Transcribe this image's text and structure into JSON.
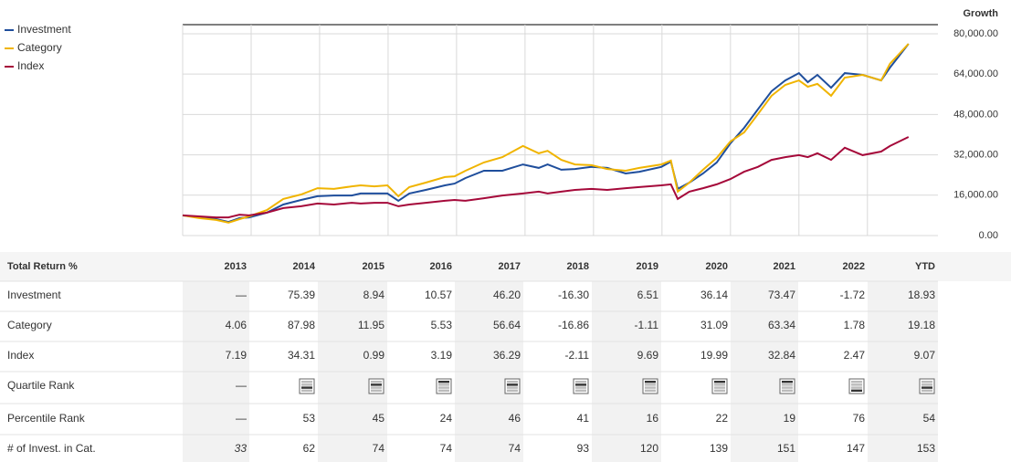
{
  "chart_data": {
    "type": "line",
    "y_axis_title": "Growth",
    "x": [
      2013.0,
      2013.24,
      2013.49,
      2013.67,
      2013.83,
      2013.97,
      2014.23,
      2014.47,
      2014.73,
      2014.97,
      2015.21,
      2015.47,
      2015.6,
      2015.8,
      2015.99,
      2016.15,
      2016.31,
      2016.55,
      2016.83,
      2016.97,
      2017.13,
      2017.4,
      2017.67,
      2017.97,
      2018.2,
      2018.33,
      2018.53,
      2018.73,
      2018.97,
      2019.2,
      2019.47,
      2019.67,
      2019.99,
      2020.13,
      2020.23,
      2020.4,
      2020.6,
      2020.8,
      2021.0,
      2021.2,
      2021.4,
      2021.6,
      2021.8,
      2022.0,
      2022.13,
      2022.27,
      2022.47,
      2022.67,
      2022.93,
      2023.2,
      2023.33,
      2023.6
    ],
    "series": [
      {
        "name": "Investment",
        "color": "#1f4e9c",
        "values": [
          8000,
          7200,
          6500,
          5400,
          6900,
          7200,
          9100,
          12300,
          14100,
          15600,
          15900,
          15900,
          16700,
          16700,
          16700,
          13800,
          16700,
          18100,
          19900,
          20600,
          22800,
          25700,
          25700,
          28200,
          26800,
          28200,
          26100,
          26400,
          27200,
          26800,
          24600,
          25300,
          27200,
          29300,
          18500,
          21000,
          24600,
          29000,
          36600,
          42700,
          50000,
          57200,
          61500,
          64400,
          60800,
          63700,
          58600,
          64400,
          63700,
          61500,
          66600,
          76000
        ]
      },
      {
        "name": "Category",
        "color": "#f0b400",
        "values": [
          8000,
          6900,
          6200,
          5100,
          6500,
          7600,
          10100,
          14500,
          16300,
          18800,
          18500,
          19500,
          19900,
          19500,
          19900,
          15600,
          19200,
          21000,
          23200,
          23500,
          25700,
          29000,
          31100,
          35500,
          32600,
          33600,
          30000,
          28200,
          27900,
          26400,
          25700,
          26800,
          28200,
          29700,
          17400,
          21000,
          26100,
          30800,
          37300,
          40900,
          48100,
          55400,
          59700,
          61500,
          59000,
          60100,
          55400,
          62600,
          63700,
          61500,
          68100,
          76000
        ]
      },
      {
        "name": "Index",
        "color": "#a5093a",
        "values": [
          8000,
          7600,
          7200,
          7200,
          8300,
          8000,
          9100,
          10900,
          11600,
          12700,
          12300,
          13000,
          12700,
          13000,
          13000,
          11600,
          12300,
          13000,
          13800,
          14100,
          13800,
          14800,
          15900,
          16700,
          17400,
          16700,
          17400,
          18100,
          18500,
          18100,
          18800,
          19200,
          19900,
          20300,
          14500,
          17400,
          18800,
          20300,
          22400,
          25300,
          27200,
          30000,
          31100,
          31900,
          31100,
          32600,
          30000,
          34800,
          31900,
          33300,
          35500,
          39100
        ]
      }
    ],
    "xlim": [
      2013,
      2024.03
    ],
    "xticks": [
      2014,
      2015,
      2016,
      2017,
      2018,
      2019,
      2020,
      2021,
      2022,
      2023
    ],
    "ylim": [
      0,
      83600
    ],
    "yticks": [
      {
        "value": 0,
        "label": "0.00"
      },
      {
        "value": 16000,
        "label": "16,000.00"
      },
      {
        "value": 32000,
        "label": "32,000.00"
      },
      {
        "value": 48000,
        "label": "48,000.00"
      },
      {
        "value": 64000,
        "label": "64,000.00"
      },
      {
        "value": 80000,
        "label": "80,000.00"
      }
    ],
    "grid": true,
    "legend": "top-left"
  },
  "table": {
    "header": [
      "Total Return %",
      "2013",
      "2014",
      "2015",
      "2016",
      "2017",
      "2018",
      "2019",
      "2020",
      "2021",
      "2022",
      "YTD"
    ],
    "rows": [
      [
        "Investment",
        "—",
        "75.39",
        "8.94",
        "10.57",
        "46.20",
        "-16.30",
        "6.51",
        "36.14",
        "73.47",
        "-1.72",
        "18.93"
      ],
      [
        "Category",
        "4.06",
        "87.98",
        "11.95",
        "5.53",
        "56.64",
        "-16.86",
        "-1.11",
        "31.09",
        "63.34",
        "1.78",
        "19.18"
      ],
      [
        "Index",
        "7.19",
        "34.31",
        "0.99",
        "3.19",
        "36.29",
        "-2.11",
        "9.69",
        "19.99",
        "32.84",
        "2.47",
        "9.07"
      ]
    ],
    "quartile_rank": {
      "label": "Quartile Rank",
      "values": [
        "—",
        3,
        2,
        1,
        2,
        2,
        1,
        1,
        1,
        4,
        3
      ]
    },
    "rows_after": [
      [
        "Percentile Rank",
        "—",
        "53",
        "45",
        "24",
        "46",
        "41",
        "16",
        "22",
        "19",
        "76",
        "54"
      ],
      [
        "# of Invest. in Cat.",
        "33",
        "62",
        "74",
        "74",
        "74",
        "93",
        "120",
        "139",
        "151",
        "147",
        "153"
      ]
    ]
  }
}
